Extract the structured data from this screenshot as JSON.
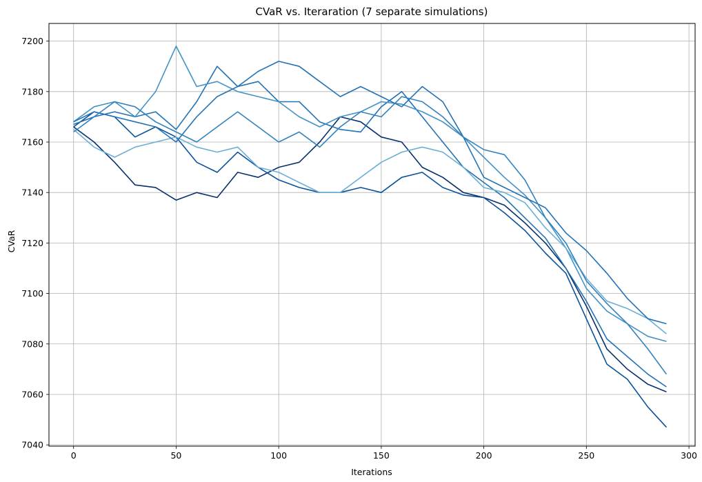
{
  "chart_data": {
    "type": "line",
    "title": "CVaR vs. Iteraration (7 separate simulations)",
    "xlabel": "Iterations",
    "ylabel": "CVaR",
    "xlim": [
      -12,
      303
    ],
    "ylim": [
      7039.5,
      7207.0
    ],
    "xticks": [
      0,
      50,
      100,
      150,
      200,
      250,
      300
    ],
    "yticks": [
      7040,
      7060,
      7080,
      7100,
      7120,
      7140,
      7160,
      7180,
      7200
    ],
    "grid": true,
    "colors": [
      "#08306b",
      "#08519c",
      "#2171b5",
      "#4292c6",
      "#6baed6",
      "#2171b5",
      "#3182bd"
    ],
    "series": [
      {
        "x": [
          0,
          10,
          20,
          30,
          40,
          50,
          60,
          70,
          80,
          90,
          100,
          110,
          120,
          130,
          140,
          150,
          160,
          170,
          180,
          190,
          200,
          210,
          220,
          230,
          240,
          250,
          260,
          270,
          280,
          289
        ],
        "values": [
          7166,
          7160,
          7152,
          7143,
          7142,
          7137,
          7140,
          7138,
          7148,
          7146,
          7150,
          7152,
          7160,
          7170,
          7168,
          7162,
          7160,
          7150,
          7146,
          7140,
          7138,
          7135,
          7128,
          7120,
          7110,
          7095,
          7078,
          7070,
          7064,
          7061
        ]
      },
      {
        "x": [
          0,
          10,
          20,
          30,
          40,
          50,
          60,
          70,
          80,
          90,
          100,
          110,
          120,
          130,
          140,
          150,
          160,
          170,
          180,
          190,
          200,
          210,
          220,
          230,
          240,
          250,
          260,
          270,
          280,
          289
        ],
        "values": [
          7166,
          7172,
          7170,
          7162,
          7166,
          7162,
          7152,
          7148,
          7156,
          7150,
          7145,
          7142,
          7140,
          7140,
          7142,
          7140,
          7146,
          7148,
          7142,
          7139,
          7138,
          7132,
          7125,
          7116,
          7108,
          7090,
          7072,
          7066,
          7055,
          7047
        ]
      },
      {
        "x": [
          0,
          10,
          20,
          30,
          40,
          50,
          60,
          70,
          80,
          90,
          100,
          110,
          120,
          130,
          140,
          150,
          160,
          170,
          180,
          190,
          200,
          210,
          220,
          230,
          240,
          250,
          260,
          270,
          280,
          289
        ],
        "values": [
          7167,
          7170,
          7172,
          7170,
          7172,
          7165,
          7176,
          7190,
          7182,
          7184,
          7176,
          7176,
          7168,
          7165,
          7164,
          7174,
          7180,
          7170,
          7160,
          7150,
          7144,
          7138,
          7130,
          7122,
          7110,
          7097,
          7082,
          7075,
          7068,
          7063
        ]
      },
      {
        "x": [
          0,
          10,
          20,
          30,
          40,
          50,
          60,
          70,
          80,
          90,
          100,
          110,
          120,
          130,
          140,
          150,
          160,
          170,
          180,
          190,
          200,
          210,
          220,
          230,
          240,
          250,
          260,
          270,
          280,
          289
        ],
        "values": [
          7168,
          7174,
          7176,
          7170,
          7180,
          7198,
          7182,
          7184,
          7180,
          7178,
          7176,
          7170,
          7166,
          7170,
          7172,
          7176,
          7175,
          7172,
          7168,
          7162,
          7154,
          7146,
          7139,
          7130,
          7118,
          7102,
          7093,
          7088,
          7083,
          7081
        ]
      },
      {
        "x": [
          0,
          10,
          20,
          30,
          40,
          50,
          60,
          70,
          80,
          90,
          100,
          110,
          120,
          130,
          140,
          150,
          160,
          170,
          180,
          190,
          200,
          210,
          220,
          230,
          240,
          250,
          260,
          270,
          280,
          289
        ],
        "values": [
          7165,
          7158,
          7154,
          7158,
          7160,
          7162,
          7158,
          7156,
          7158,
          7150,
          7148,
          7144,
          7140,
          7140,
          7146,
          7152,
          7156,
          7158,
          7156,
          7150,
          7142,
          7140,
          7136,
          7126,
          7118,
          7106,
          7097,
          7094,
          7090,
          7084
        ]
      },
      {
        "x": [
          0,
          10,
          20,
          30,
          40,
          50,
          60,
          70,
          80,
          90,
          100,
          110,
          120,
          130,
          140,
          150,
          160,
          170,
          180,
          190,
          200,
          210,
          220,
          230,
          240,
          250,
          260,
          270,
          280,
          289
        ],
        "values": [
          7168,
          7172,
          7170,
          7168,
          7166,
          7160,
          7170,
          7178,
          7182,
          7188,
          7192,
          7190,
          7184,
          7178,
          7182,
          7178,
          7174,
          7182,
          7176,
          7162,
          7146,
          7142,
          7138,
          7134,
          7124,
          7117,
          7108,
          7098,
          7090,
          7088
        ]
      },
      {
        "x": [
          0,
          10,
          20,
          30,
          40,
          50,
          60,
          70,
          80,
          90,
          100,
          110,
          120,
          130,
          140,
          150,
          160,
          170,
          180,
          190,
          200,
          210,
          220,
          230,
          240,
          250,
          260,
          270,
          280,
          289
        ],
        "values": [
          7164,
          7170,
          7176,
          7174,
          7168,
          7164,
          7160,
          7166,
          7172,
          7166,
          7160,
          7164,
          7158,
          7166,
          7172,
          7170,
          7178,
          7176,
          7170,
          7162,
          7157,
          7155,
          7145,
          7130,
          7120,
          7105,
          7096,
          7088,
          7078,
          7068
        ]
      }
    ]
  }
}
